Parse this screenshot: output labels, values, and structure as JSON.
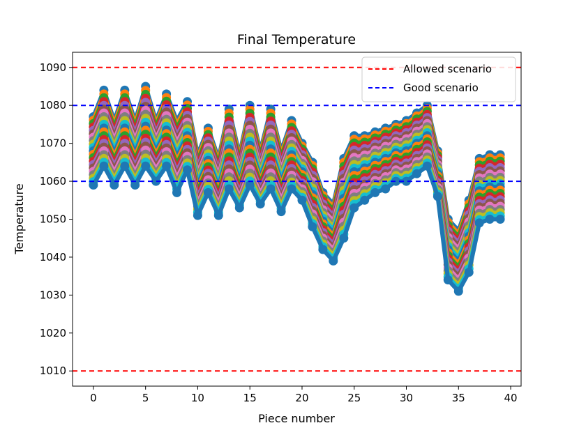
{
  "chart_data": {
    "type": "line",
    "title": "Final Temperature",
    "xlabel": "Piece number",
    "ylabel": "Temperature",
    "xlim": [
      -2,
      41
    ],
    "ylim": [
      1006,
      1094
    ],
    "xticks": [
      0,
      5,
      10,
      15,
      20,
      25,
      30,
      35,
      40
    ],
    "yticks": [
      1010,
      1020,
      1030,
      1040,
      1050,
      1060,
      1070,
      1080,
      1090
    ],
    "markers": "circle",
    "x": [
      0,
      1,
      2,
      3,
      4,
      5,
      6,
      7,
      8,
      9,
      10,
      11,
      12,
      13,
      14,
      15,
      16,
      17,
      18,
      19,
      20,
      21,
      22,
      23,
      24,
      25,
      26,
      27,
      28,
      29,
      30,
      31,
      32,
      33,
      34,
      35,
      36,
      37,
      38,
      39
    ],
    "series_upper": [
      1077,
      1084,
      1076,
      1084,
      1076,
      1085,
      1076,
      1083,
      1076,
      1081,
      1067,
      1074,
      1066,
      1079,
      1067,
      1080,
      1068,
      1079,
      1068,
      1076,
      1070,
      1065,
      1057,
      1054,
      1066,
      1072,
      1072,
      1073,
      1074,
      1075,
      1076,
      1078,
      1080,
      1068,
      1050,
      1047,
      1055,
      1066,
      1067,
      1067
    ],
    "series_lower": [
      1059,
      1064,
      1059,
      1064,
      1059,
      1064,
      1060,
      1064,
      1057,
      1063,
      1051,
      1057,
      1051,
      1058,
      1053,
      1059,
      1054,
      1058,
      1052,
      1058,
      1055,
      1048,
      1042,
      1039,
      1045,
      1053,
      1055,
      1057,
      1058,
      1060,
      1060,
      1062,
      1064,
      1056,
      1034,
      1031,
      1036,
      1049,
      1050,
      1050
    ],
    "series_count": 21,
    "series_colors": [
      "#1f77b4",
      "#ff7f0e",
      "#2ca02c",
      "#d62728",
      "#9467bd",
      "#8c564b",
      "#e377c2",
      "#7f7f7f",
      "#bcbd22",
      "#17becf"
    ],
    "reference_lines": [
      {
        "name": "Allowed scenario",
        "values": [
          1090,
          1010
        ],
        "color": "#ff0000",
        "style": "dashed"
      },
      {
        "name": "Good scenario",
        "values": [
          1080,
          1060
        ],
        "color": "#0000ff",
        "style": "dashed"
      }
    ],
    "legend": {
      "position": "top-right",
      "entries": [
        {
          "label": "Allowed scenario",
          "color": "#ff0000"
        },
        {
          "label": "Good scenario",
          "color": "#0000ff"
        }
      ]
    },
    "grid": false
  }
}
